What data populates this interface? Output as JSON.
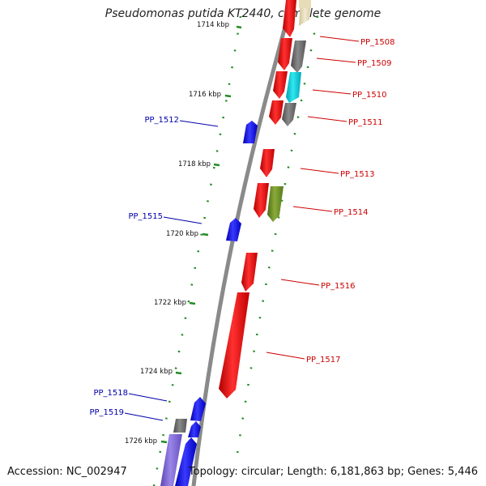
{
  "title": "Pseudomonas putida KT2440, complete genome",
  "accession": "Accession: NC_002947",
  "topology": "Topology: circular; Length: 6,181,863 bp; Genes: 5,446",
  "colors": {
    "backbone": "#8a8a8a",
    "tick": "#228b22",
    "forward_label": "#cc0000",
    "reverse_label": "#0000aa",
    "red": "#ee0000",
    "gray": "#707070",
    "cyan": "#00c8d4",
    "olive": "#6b8e23",
    "blue": "#0000ee",
    "purple": "#7a62d0",
    "tan": "#e6dcb8"
  },
  "scale_labels": [
    "1714 kbp",
    "1716 kbp",
    "1718 kbp",
    "1720 kbp",
    "1722 kbp",
    "1724 kbp",
    "1726 kbp"
  ],
  "gene_labels": [
    {
      "id": "PP_1508",
      "strand": "forward"
    },
    {
      "id": "PP_1509",
      "strand": "forward"
    },
    {
      "id": "PP_1510",
      "strand": "forward"
    },
    {
      "id": "PP_1511",
      "strand": "forward"
    },
    {
      "id": "PP_1512",
      "strand": "reverse"
    },
    {
      "id": "PP_1513",
      "strand": "forward"
    },
    {
      "id": "PP_1514",
      "strand": "forward"
    },
    {
      "id": "PP_1515",
      "strand": "reverse"
    },
    {
      "id": "PP_1516",
      "strand": "forward"
    },
    {
      "id": "PP_1517",
      "strand": "forward"
    },
    {
      "id": "PP_1518",
      "strand": "reverse"
    },
    {
      "id": "PP_1519",
      "strand": "reverse"
    }
  ]
}
